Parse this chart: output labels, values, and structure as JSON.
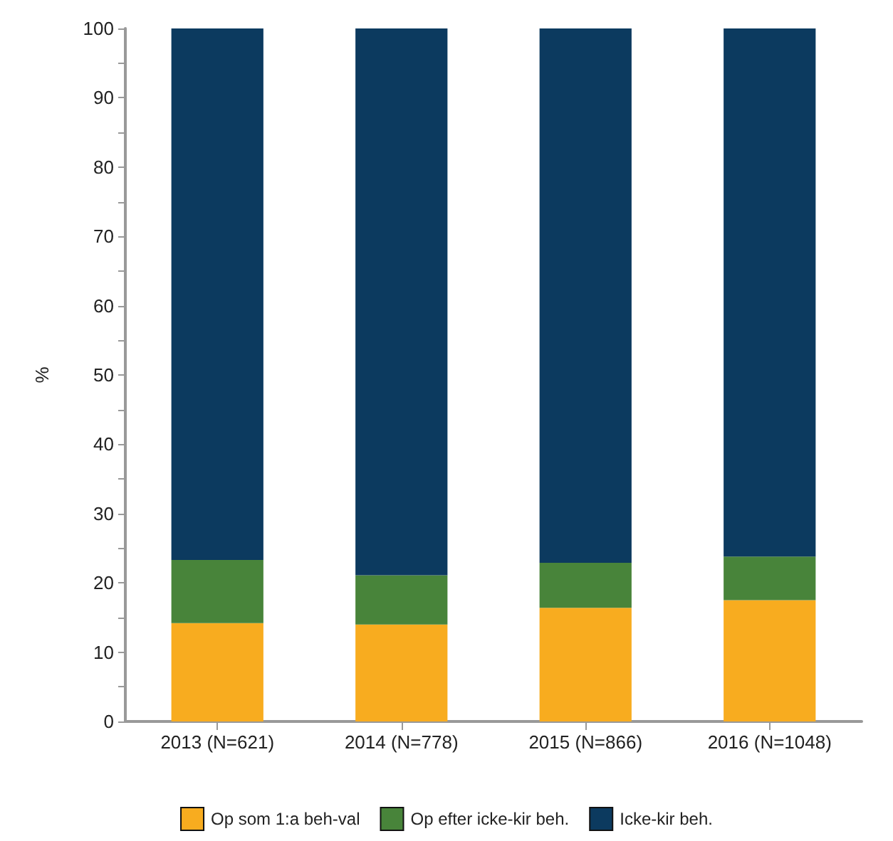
{
  "chart_data": {
    "type": "bar",
    "stacked": true,
    "ylabel": "%",
    "categories": [
      "2013 (N=621)",
      "2014 (N=778)",
      "2015 (N=866)",
      "2016 (N=1048)"
    ],
    "series": [
      {
        "name": "Op som 1:a beh-val",
        "color": "#f8ac1f",
        "values": [
          14.2,
          14.0,
          16.4,
          17.5
        ]
      },
      {
        "name": "Op efter icke-kir beh.",
        "color": "#48843a",
        "values": [
          9.1,
          7.1,
          6.5,
          6.3
        ]
      },
      {
        "name": "Icke-kir beh.",
        "color": "#0c3a5f",
        "values": [
          76.7,
          78.9,
          77.1,
          76.2
        ]
      }
    ],
    "ylim": [
      0,
      100
    ],
    "yticks": [
      0,
      {
        "value": 5,
        "label": null
      },
      10,
      {
        "value": 15,
        "label": null
      },
      20,
      {
        "value": 25,
        "label": null
      },
      30,
      {
        "value": 35,
        "label": null
      },
      40,
      {
        "value": 45,
        "label": null
      },
      50,
      {
        "value": 55,
        "label": null
      },
      60,
      {
        "value": 65,
        "label": null
      },
      70,
      {
        "value": 75,
        "label": null
      },
      80,
      {
        "value": 85,
        "label": null
      },
      90,
      {
        "value": 95,
        "label": null
      },
      100
    ],
    "grid": false,
    "legend": "bottom"
  }
}
